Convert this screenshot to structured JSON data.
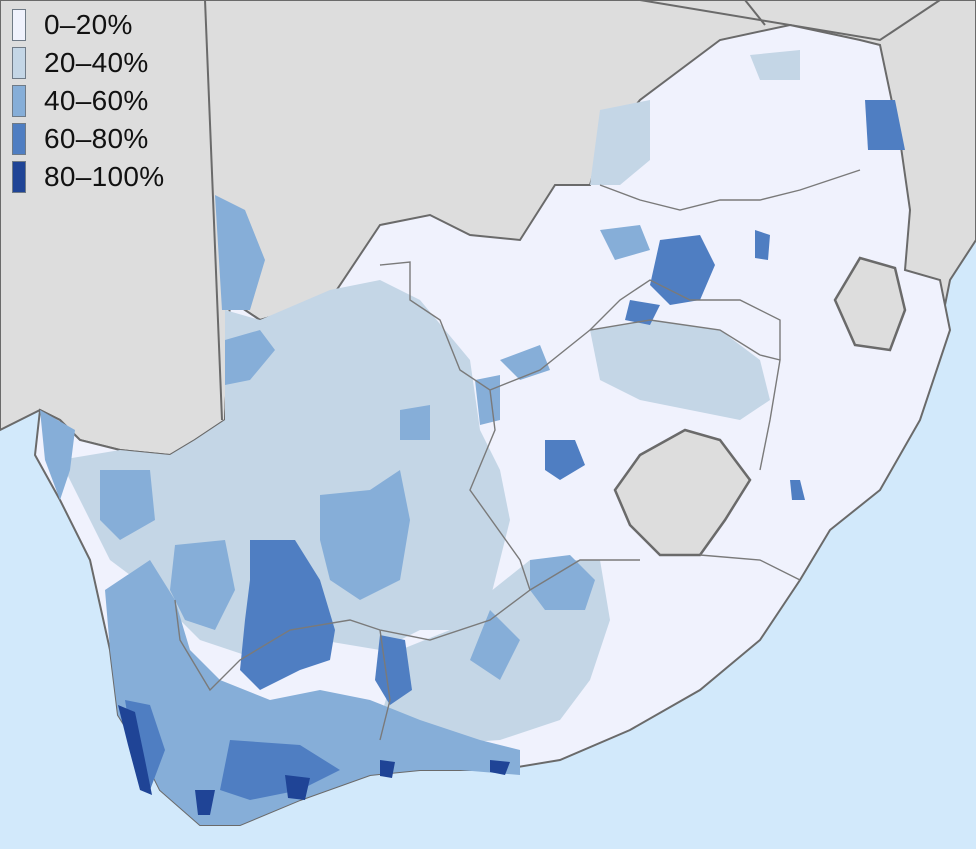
{
  "legend": {
    "items": [
      {
        "label": "0–20%",
        "color": "#f0f2fd"
      },
      {
        "label": "20–40%",
        "color": "#c4d6e6"
      },
      {
        "label": "40–60%",
        "color": "#86aed8"
      },
      {
        "label": "60–80%",
        "color": "#4f7ec2"
      },
      {
        "label": "80–100%",
        "color": "#1f4496"
      }
    ]
  },
  "colors": {
    "ocean": "#d2e9fb",
    "neighbor_country": "#dddddd",
    "border": "#6a6a6a"
  }
}
